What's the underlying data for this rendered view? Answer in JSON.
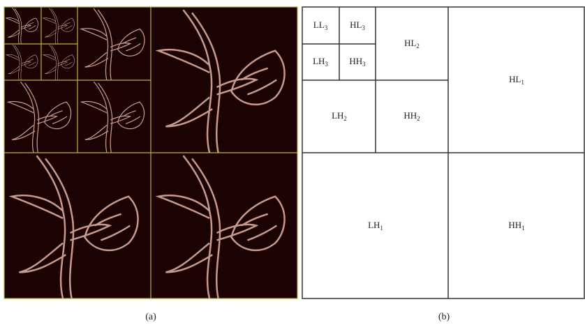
{
  "panel_a": {
    "caption": "(a)"
  },
  "panel_b": {
    "caption": "(b)",
    "cells": [
      {
        "label": "LL",
        "sub": "3"
      },
      {
        "label": "HL",
        "sub": "3"
      },
      {
        "label": "LH",
        "sub": "3"
      },
      {
        "label": "HH",
        "sub": "3"
      },
      {
        "label": "HL",
        "sub": "2"
      },
      {
        "label": "LH",
        "sub": "2"
      },
      {
        "label": "HH",
        "sub": "2"
      },
      {
        "label": "HL",
        "sub": "1"
      },
      {
        "label": "LH",
        "sub": "1"
      },
      {
        "label": "HH",
        "sub": "1"
      }
    ]
  }
}
